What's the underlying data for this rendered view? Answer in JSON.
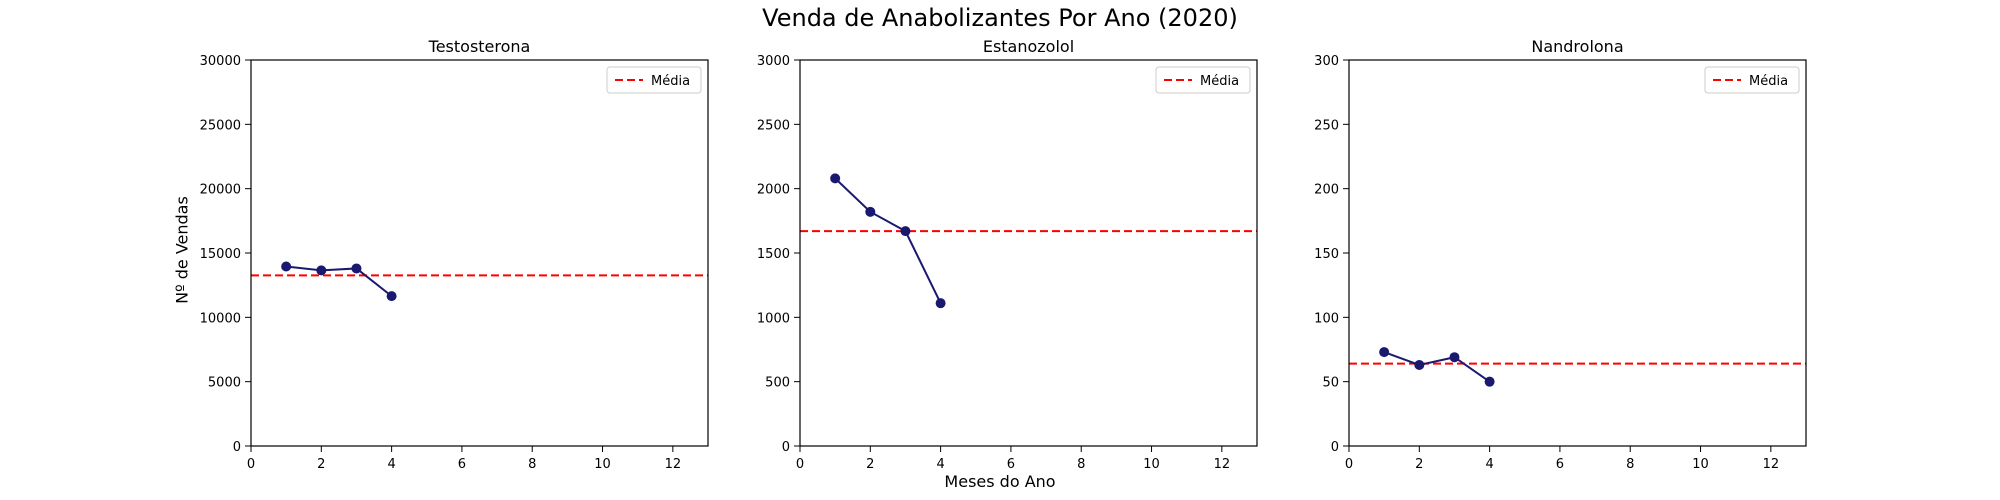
{
  "figure": {
    "title": "Venda de Anabolizantes Por Ano (2020)",
    "xlabel": "Meses do Ano",
    "ylabel": "Nº de Vendas",
    "line_color": "#191970",
    "mean_color": "#ff0000"
  },
  "chart_data": [
    {
      "type": "line",
      "title": "Testosterona",
      "x": [
        1,
        2,
        3,
        4
      ],
      "series": [
        {
          "name": "",
          "values": [
            13950,
            13650,
            13800,
            11650
          ]
        }
      ],
      "mean": {
        "label": "Média",
        "value": 13262
      },
      "xlim": [
        0,
        13
      ],
      "ylim": [
        0,
        30000
      ],
      "xticks": [
        0,
        2,
        4,
        6,
        8,
        10,
        12
      ],
      "yticks": [
        0,
        5000,
        10000,
        15000,
        20000,
        25000,
        30000
      ],
      "legend": "top-right",
      "grid": false
    },
    {
      "type": "line",
      "title": "Estanozolol",
      "x": [
        1,
        2,
        3,
        4
      ],
      "series": [
        {
          "name": "",
          "values": [
            2080,
            1820,
            1670,
            1110
          ]
        }
      ],
      "mean": {
        "label": "Média",
        "value": 1670
      },
      "xlim": [
        0,
        13
      ],
      "ylim": [
        0,
        3000
      ],
      "xticks": [
        0,
        2,
        4,
        6,
        8,
        10,
        12
      ],
      "yticks": [
        0,
        500,
        1000,
        1500,
        2000,
        2500,
        3000
      ],
      "legend": "top-right",
      "grid": false
    },
    {
      "type": "line",
      "title": "Nandrolona",
      "x": [
        1,
        2,
        3,
        4
      ],
      "series": [
        {
          "name": "",
          "values": [
            73,
            63,
            69,
            50
          ]
        }
      ],
      "mean": {
        "label": "Média",
        "value": 64
      },
      "xlim": [
        0,
        13
      ],
      "ylim": [
        0,
        300
      ],
      "xticks": [
        0,
        2,
        4,
        6,
        8,
        10,
        12
      ],
      "yticks": [
        0,
        50,
        100,
        150,
        200,
        250,
        300
      ],
      "legend": "top-right",
      "grid": false
    }
  ]
}
